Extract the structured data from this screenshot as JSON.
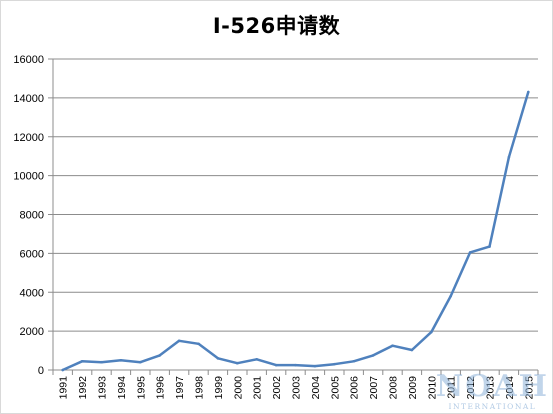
{
  "chart_data": {
    "type": "line",
    "title": "I-526申请数",
    "xlabel": "",
    "ylabel": "",
    "ylim": [
      0,
      16000
    ],
    "yticks": [
      0,
      2000,
      4000,
      6000,
      8000,
      10000,
      12000,
      14000,
      16000
    ],
    "grid": true,
    "x": [
      "1991",
      "1992",
      "1993",
      "1994",
      "1995",
      "1996",
      "1997",
      "1998",
      "1999",
      "2000",
      "2001",
      "2002",
      "2003",
      "2004",
      "2005",
      "2006",
      "2007",
      "2008",
      "2009",
      "2010",
      "2011",
      "2012",
      "2013",
      "2014",
      "2015"
    ],
    "series": [
      {
        "values": [
          0,
          450,
          400,
          500,
          400,
          750,
          1500,
          1350,
          600,
          350,
          550,
          250,
          250,
          200,
          300,
          450,
          750,
          1250,
          1030,
          1950,
          3800,
          6050,
          6350,
          10950,
          14300
        ],
        "color": "#4f81bd"
      }
    ]
  },
  "watermark": {
    "main": "NOAH",
    "sub": "INTERNATIONAL"
  }
}
